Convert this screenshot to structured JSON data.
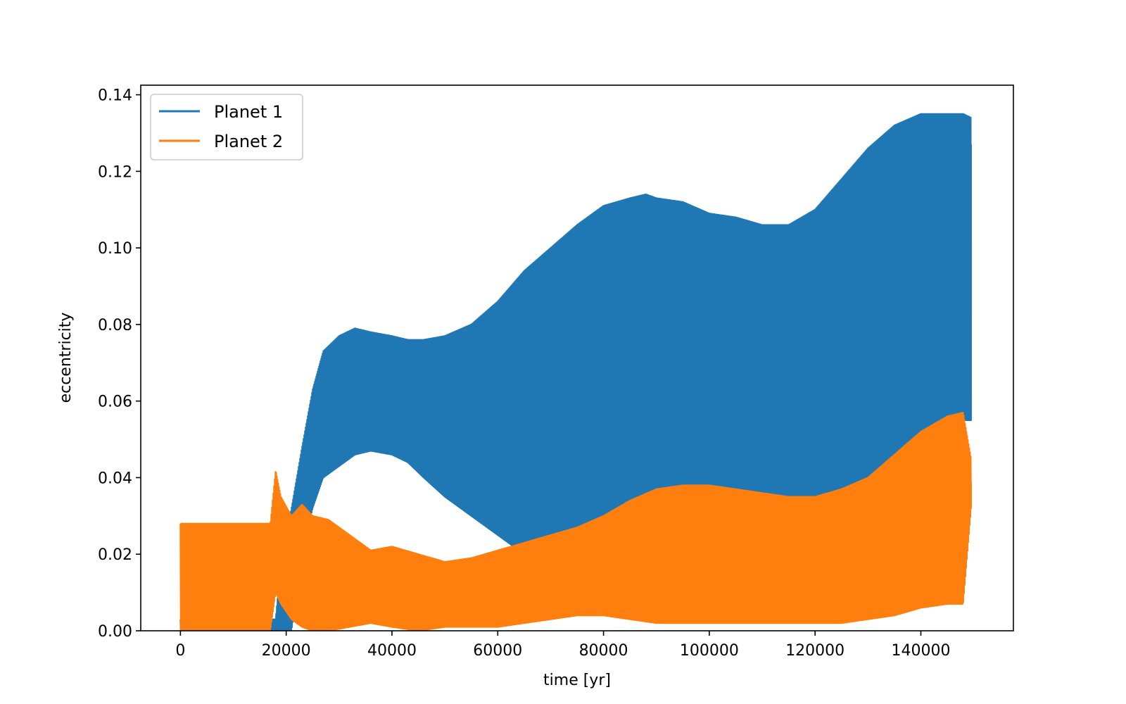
{
  "chart_data": {
    "type": "line",
    "title": "",
    "xlabel": "time [yr]",
    "ylabel": "eccentricity",
    "xlim": [
      -7500,
      157500
    ],
    "ylim": [
      0.0,
      0.1425
    ],
    "x_ticks": [
      0,
      20000,
      40000,
      60000,
      80000,
      100000,
      120000,
      140000
    ],
    "x_tick_labels": [
      "0",
      "20000",
      "40000",
      "60000",
      "80000",
      "100000",
      "120000",
      "140000"
    ],
    "y_ticks": [
      0.0,
      0.02,
      0.04,
      0.06,
      0.08,
      0.1,
      0.12,
      0.14
    ],
    "y_tick_labels": [
      "0.00",
      "0.02",
      "0.04",
      "0.06",
      "0.08",
      "0.10",
      "0.12",
      "0.14"
    ],
    "grid": false,
    "legend": "upper-left",
    "series": [
      {
        "name": "Planet 1",
        "color": "#1f77b4",
        "x": [
          0,
          18000,
          19000,
          21000,
          23000,
          25000,
          27000,
          30000,
          33000,
          36000,
          40000,
          43000,
          46000,
          50000,
          55000,
          60000,
          65000,
          70000,
          75000,
          80000,
          85000,
          88000,
          90000,
          95000,
          100000,
          105000,
          110000,
          115000,
          120000,
          125000,
          130000,
          135000,
          140000,
          145000,
          148000,
          149500
        ],
        "max": [
          0.003,
          0.003,
          0.018,
          0.032,
          0.048,
          0.063,
          0.073,
          0.077,
          0.079,
          0.078,
          0.077,
          0.076,
          0.076,
          0.077,
          0.08,
          0.086,
          0.094,
          0.1,
          0.106,
          0.111,
          0.113,
          0.114,
          0.113,
          0.112,
          0.109,
          0.108,
          0.106,
          0.106,
          0.11,
          0.118,
          0.126,
          0.132,
          0.135,
          0.135,
          0.135,
          0.134
        ],
        "min": [
          0.0,
          0.0,
          0.0,
          0.0,
          0.02,
          0.032,
          0.04,
          0.043,
          0.046,
          0.047,
          0.046,
          0.044,
          0.04,
          0.035,
          0.03,
          0.025,
          0.02,
          0.017,
          0.013,
          0.01,
          0.008,
          0.008,
          0.008,
          0.009,
          0.01,
          0.01,
          0.012,
          0.014,
          0.018,
          0.024,
          0.032,
          0.04,
          0.046,
          0.052,
          0.055,
          0.055
        ],
        "mid": [
          0.001,
          0.001,
          0.006,
          0.018,
          0.034,
          0.048,
          0.057,
          0.06,
          0.063,
          0.063,
          0.061,
          0.06,
          0.058,
          0.056,
          0.055,
          0.055,
          0.057,
          0.058,
          0.06,
          0.06,
          0.06,
          0.061,
          0.061,
          0.061,
          0.06,
          0.059,
          0.059,
          0.06,
          0.064,
          0.071,
          0.079,
          0.086,
          0.09,
          0.094,
          0.095,
          0.127
        ]
      },
      {
        "name": "Planet 2",
        "color": "#ff7f0e",
        "x": [
          0,
          17000,
          18000,
          19000,
          21000,
          23000,
          25000,
          28000,
          32000,
          36000,
          40000,
          45000,
          50000,
          55000,
          60000,
          65000,
          70000,
          75000,
          80000,
          85000,
          90000,
          95000,
          100000,
          105000,
          110000,
          115000,
          120000,
          125000,
          130000,
          135000,
          140000,
          145000,
          148000,
          149500
        ],
        "max": [
          0.028,
          0.028,
          0.042,
          0.035,
          0.03,
          0.033,
          0.03,
          0.029,
          0.025,
          0.021,
          0.022,
          0.02,
          0.018,
          0.019,
          0.021,
          0.023,
          0.025,
          0.027,
          0.03,
          0.034,
          0.037,
          0.038,
          0.038,
          0.037,
          0.036,
          0.035,
          0.035,
          0.037,
          0.04,
          0.046,
          0.052,
          0.056,
          0.057,
          0.045
        ],
        "min": [
          0.0,
          0.0,
          0.01,
          0.007,
          0.003,
          0.001,
          0.0,
          0.0,
          0.001,
          0.002,
          0.001,
          0.0,
          0.001,
          0.001,
          0.001,
          0.002,
          0.003,
          0.004,
          0.004,
          0.003,
          0.002,
          0.002,
          0.002,
          0.002,
          0.002,
          0.002,
          0.002,
          0.002,
          0.003,
          0.004,
          0.006,
          0.007,
          0.007,
          0.032
        ],
        "mid": [
          0.014,
          0.014,
          0.025,
          0.02,
          0.016,
          0.016,
          0.015,
          0.014,
          0.012,
          0.011,
          0.01,
          0.01,
          0.01,
          0.011,
          0.011,
          0.012,
          0.014,
          0.016,
          0.018,
          0.02,
          0.021,
          0.021,
          0.021,
          0.021,
          0.02,
          0.02,
          0.02,
          0.021,
          0.023,
          0.027,
          0.031,
          0.034,
          0.035,
          0.039
        ]
      }
    ]
  }
}
